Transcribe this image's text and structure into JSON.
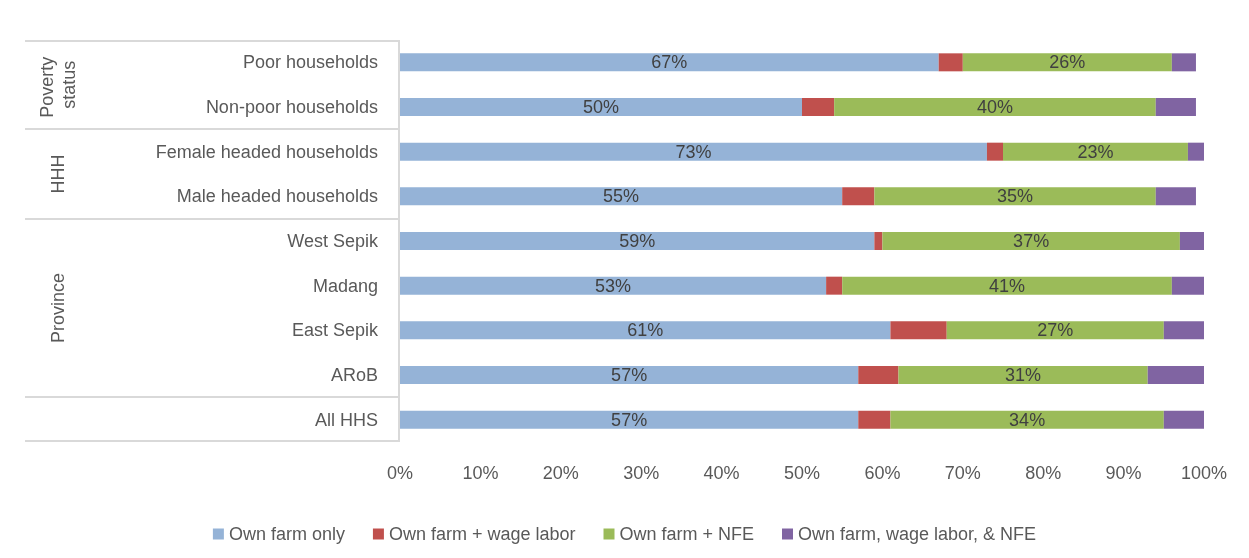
{
  "chart_data": {
    "type": "bar",
    "orientation": "horizontal",
    "stacked": true,
    "categories": [
      "Poor households",
      "Non-poor households",
      "Female headed households",
      "Male headed households",
      "West Sepik",
      "Madang",
      "East Sepik",
      "ARoB",
      "All HHS"
    ],
    "series": [
      {
        "name": "Own farm only",
        "color": "#95b3d7",
        "values": [
          67,
          50,
          73,
          55,
          59,
          53,
          61,
          57,
          57
        ],
        "value_labels": [
          "67%",
          "50%",
          "73%",
          "55%",
          "59%",
          "53%",
          "61%",
          "57%",
          "57%"
        ]
      },
      {
        "name": "Own farm + wage labor",
        "color": "#c0504d",
        "values": [
          3,
          4,
          2,
          4,
          1,
          2,
          7,
          5,
          4
        ]
      },
      {
        "name": "Own farm + NFE",
        "color": "#9bbb59",
        "values": [
          26,
          40,
          23,
          35,
          37,
          41,
          27,
          31,
          34
        ],
        "value_labels": [
          "26%",
          "40%",
          "23%",
          "35%",
          "37%",
          "41%",
          "27%",
          "31%",
          "34%"
        ]
      },
      {
        "name": "Own farm, wage labor, & NFE",
        "color": "#8064a2",
        "values": [
          3,
          5,
          2,
          5,
          3,
          4,
          5,
          7,
          5
        ]
      }
    ],
    "xlim": [
      0,
      100
    ],
    "xticks": [
      {
        "value": 0,
        "label": "0%"
      },
      {
        "value": 10,
        "label": "10%"
      },
      {
        "value": 20,
        "label": "20%"
      },
      {
        "value": 30,
        "label": "30%"
      },
      {
        "value": 40,
        "label": "40%"
      },
      {
        "value": 50,
        "label": "50%"
      },
      {
        "value": 60,
        "label": "60%"
      },
      {
        "value": 70,
        "label": "70%"
      },
      {
        "value": 80,
        "label": "80%"
      },
      {
        "value": 90,
        "label": "90%"
      },
      {
        "value": 100,
        "label": "100%"
      }
    ],
    "annotations": [
      "Poverty status",
      "HHH",
      "Province"
    ],
    "legend": "bottom",
    "grid": false
  }
}
